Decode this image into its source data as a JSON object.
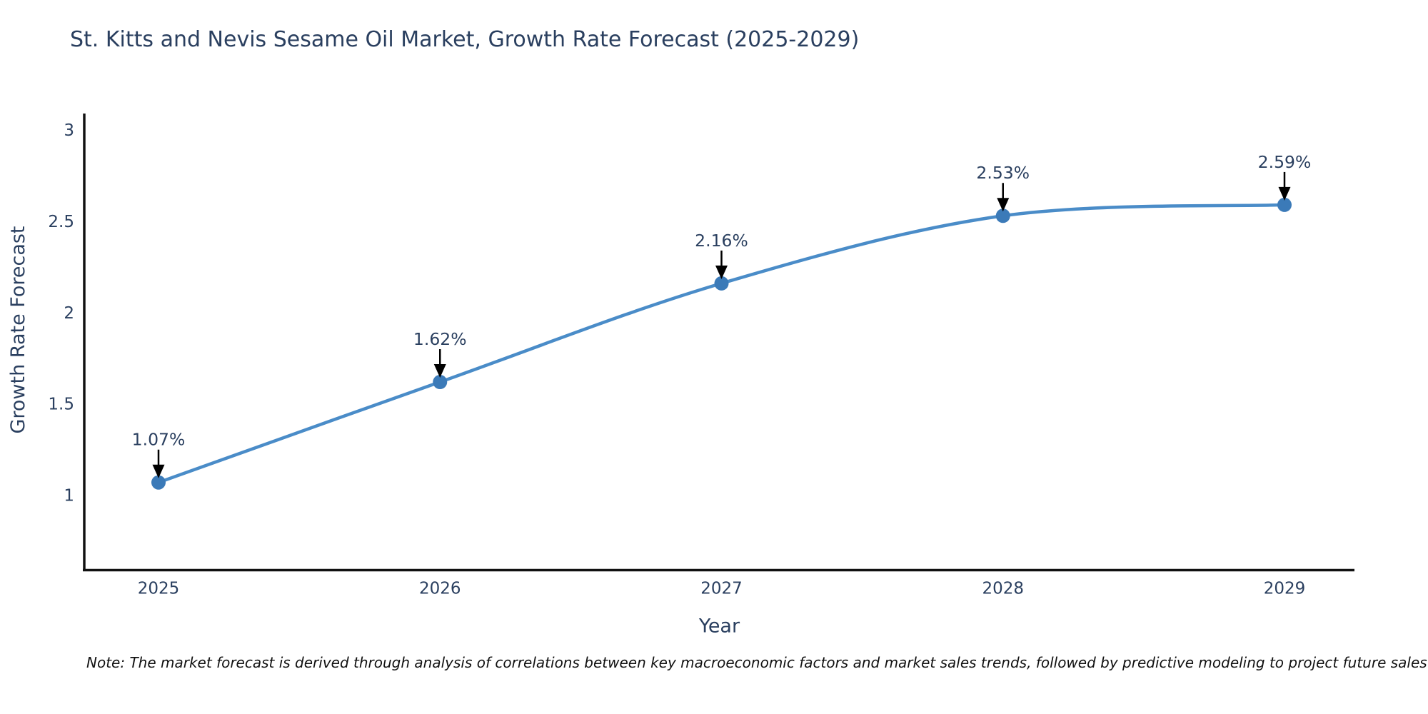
{
  "note": "Note: The market forecast is derived through analysis of correlations between key macroeconomic factors and market sales trends, followed by predictive modeling to project future sales",
  "chart_data": {
    "type": "line",
    "title": "St. Kitts and Nevis Sesame Oil Market, Growth Rate Forecast (2025-2029)",
    "x": [
      "2025",
      "2026",
      "2027",
      "2028",
      "2029"
    ],
    "series": [
      {
        "name": "Growth Rate Forecast",
        "values": [
          1.07,
          1.62,
          2.16,
          2.53,
          2.59
        ]
      }
    ],
    "point_labels": [
      "1.07%",
      "1.62%",
      "2.16%",
      "2.53%",
      "2.59%"
    ],
    "xlabel": "Year",
    "ylabel": "Growth Rate Forecast",
    "ytick_labels": [
      "1",
      "1.5",
      "2",
      "2.5",
      "3"
    ],
    "ytick_values": [
      1,
      1.5,
      2,
      2.5,
      3
    ],
    "ylim": [
      0.59,
      3.09
    ],
    "grid": false,
    "legend_position": "none",
    "line_shape": "spline",
    "colors": {
      "line": "#4a8cc8",
      "marker": "#3b7ab8",
      "axis": "#111111",
      "tick_text": "#2a3f5f",
      "title_text": "#2a3f5f",
      "annotation_text": "#2a3f5f",
      "arrow": "#000000",
      "note_text": "#111111"
    }
  }
}
